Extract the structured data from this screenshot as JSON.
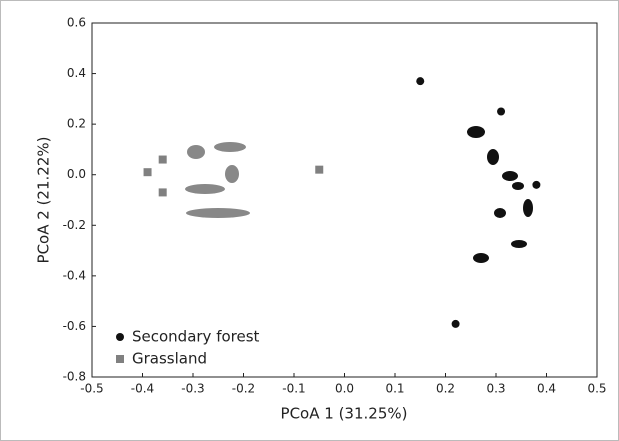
{
  "chart_data": {
    "type": "scatter",
    "x_label": "PCoA 1 (31.25%)",
    "y_label": "PCoA 2 (21.22%)",
    "series": [
      {
        "name": "Secondary forest",
        "color": "#111111",
        "marker": "circle",
        "x": [
          0.15,
          0.31,
          0.38,
          0.22
        ],
        "values": [
          0.37,
          0.25,
          -0.04,
          -0.59
        ]
      },
      {
        "name": "Grassland",
        "color": "#808080",
        "marker": "square",
        "x": [
          -0.39,
          -0.36,
          -0.36,
          -0.05
        ],
        "values": [
          0.01,
          0.06,
          -0.07,
          0.02
        ]
      }
    ],
    "xlim": [
      -0.5,
      0.5
    ],
    "xticks": [
      -0.5,
      -0.4,
      -0.3,
      -0.2,
      -0.1,
      {
        "value": 0,
        "label": "0.0"
      },
      0.1,
      0.2,
      0.3,
      0.4,
      0.5
    ],
    "ylim": [
      -0.8,
      0.6
    ],
    "yticks": [
      -0.8,
      -0.6,
      -0.4,
      -0.2,
      {
        "value": 0,
        "label": "0.0"
      },
      0.2,
      0.4,
      0.6
    ],
    "legend": "lower left"
  }
}
